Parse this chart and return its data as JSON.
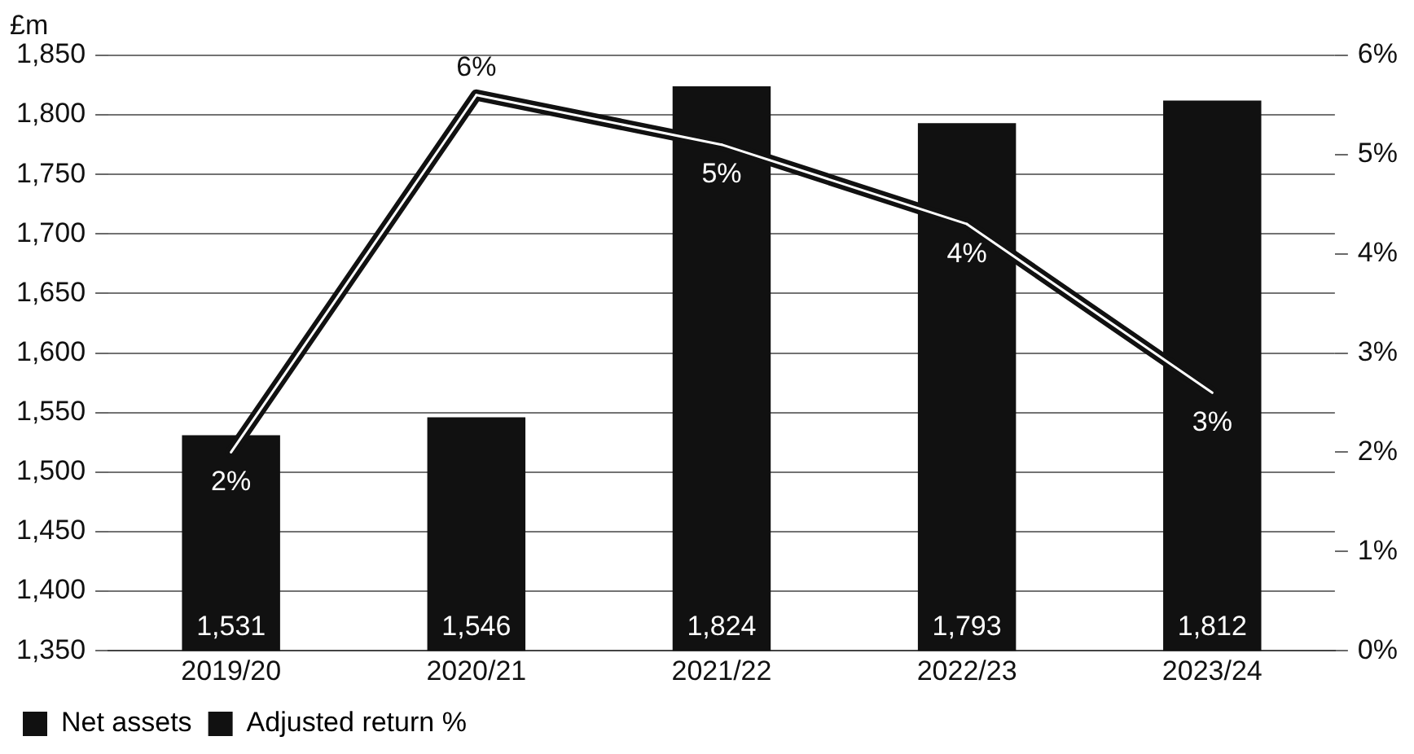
{
  "chart_data": {
    "type": "bar",
    "ylabel": "£m",
    "categories": [
      "2019/20",
      "2020/21",
      "2021/22",
      "2022/23",
      "2023/24"
    ],
    "series": [
      {
        "name": "Net assets",
        "color": "#111111",
        "values": [
          1531,
          1546,
          1824,
          1793,
          1812
        ],
        "value_labels": [
          "1,531",
          "1,546",
          "1,824",
          "1,793",
          "1,812"
        ]
      },
      {
        "name": "Adjusted return %",
        "type": "line",
        "axis": "y2",
        "color": "#111111",
        "values": [
          2.0,
          5.6,
          5.1,
          4.3,
          2.6
        ],
        "value_labels": [
          "2%",
          "6%",
          "5%",
          "4%",
          "3%"
        ]
      }
    ],
    "ylim": [
      1350,
      1850
    ],
    "yticks": [
      {
        "value": 1350,
        "label": "1,350"
      },
      {
        "value": 1400,
        "label": "1,400"
      },
      {
        "value": 1450,
        "label": "1,450"
      },
      {
        "value": 1500,
        "label": "1,500"
      },
      {
        "value": 1550,
        "label": "1,550"
      },
      {
        "value": 1600,
        "label": "1,600"
      },
      {
        "value": 1650,
        "label": "1,650"
      },
      {
        "value": 1700,
        "label": "1,700"
      },
      {
        "value": 1750,
        "label": "1,750"
      },
      {
        "value": 1800,
        "label": "1,800"
      },
      {
        "value": 1850,
        "label": "1,850"
      }
    ],
    "y2lim": [
      0,
      6
    ],
    "y2ticks": [
      {
        "value": 0,
        "label": "0%"
      },
      {
        "value": 1,
        "label": "1%"
      },
      {
        "value": 2,
        "label": "2%"
      },
      {
        "value": 3,
        "label": "3%"
      },
      {
        "value": 4,
        "label": "4%"
      },
      {
        "value": 5,
        "label": "5%"
      },
      {
        "value": 6,
        "label": "6%"
      }
    ],
    "grid": "y",
    "legend": "bottom left",
    "marker": "none",
    "line_style": "solid"
  }
}
